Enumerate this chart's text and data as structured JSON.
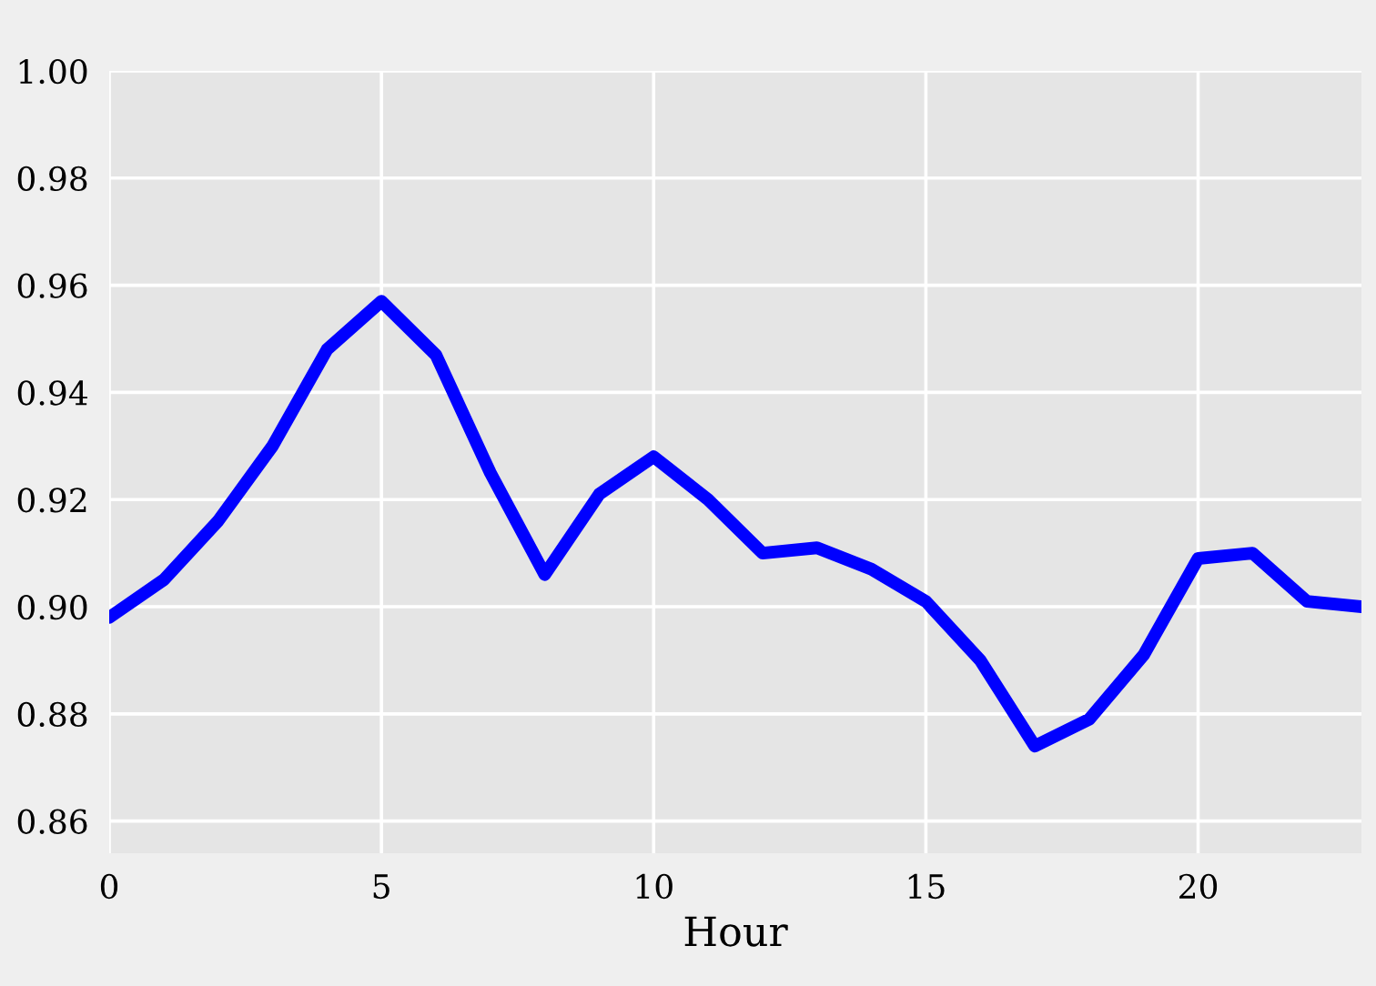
{
  "chart_data": {
    "type": "line",
    "xlabel": "Hour",
    "x": [
      0,
      1,
      2,
      3,
      4,
      5,
      6,
      7,
      8,
      9,
      10,
      11,
      12,
      13,
      14,
      15,
      16,
      17,
      18,
      19,
      20,
      21,
      22,
      23
    ],
    "series": [
      {
        "color": "#0000ff",
        "values": [
          0.898,
          0.905,
          0.916,
          0.93,
          0.948,
          0.957,
          0.947,
          0.925,
          0.906,
          0.921,
          0.928,
          0.92,
          0.91,
          0.911,
          0.907,
          0.901,
          0.89,
          0.874,
          0.879,
          0.891,
          0.909,
          0.91,
          0.901,
          0.9
        ]
      }
    ],
    "xlim": [
      0,
      23
    ],
    "xticks": [
      0,
      5,
      10,
      15,
      20
    ],
    "ylim": [
      0.854,
      1.0
    ],
    "yticks": [
      {
        "value": 0.86,
        "label": "0.86"
      },
      {
        "value": 0.88,
        "label": "0.88"
      },
      {
        "value": 0.9,
        "label": "0.90"
      },
      {
        "value": 0.92,
        "label": "0.92"
      },
      {
        "value": 0.94,
        "label": "0.94"
      },
      {
        "value": 0.96,
        "label": "0.96"
      },
      {
        "value": 0.98,
        "label": "0.98"
      },
      {
        "value": 1.0,
        "label": "1.00"
      }
    ],
    "grid": true,
    "marker": "none",
    "line_style": "solid",
    "legend": false
  }
}
